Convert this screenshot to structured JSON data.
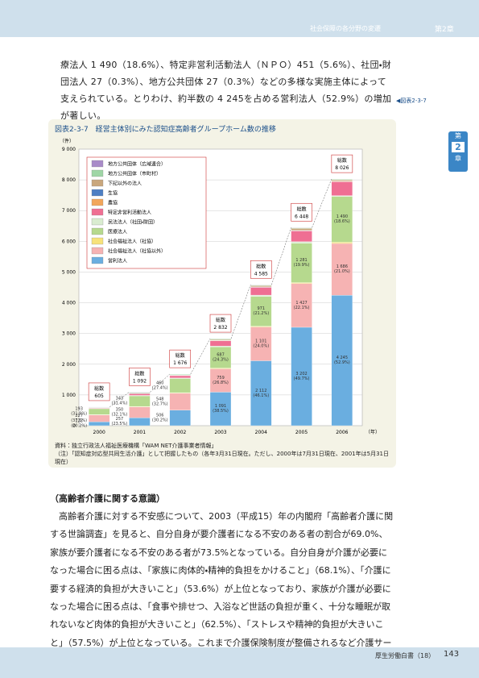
{
  "header": {
    "section": "社会保障の各分野の変遷",
    "chapter": "第2章"
  },
  "side_tab": {
    "top": "第",
    "number": "2",
    "bottom": "章"
  },
  "figure_ref": "◀図表2-3-7",
  "intro": "療法人 1 490（18.6%）、特定非営利活動法人（ＮＰＯ）451（5.6%）、社団・財団法人 27（0.3%）、地方公共団体 27（0.3%）などの多様な実施主体によって支えられている。とりわけ、約半数の 4 245を占める営利法人（52.9%）の増加が著しい。",
  "chart_data": {
    "type": "stacked-bar",
    "title": "図表2-3-7　経営主体別にみた認知症高齢者グループホーム数の推移",
    "y_unit": "（件）",
    "x_unit": "（年）",
    "categories": [
      "2000",
      "2001",
      "2002",
      "2003",
      "2004",
      "2005",
      "2006"
    ],
    "ylim": [
      0,
      9000
    ],
    "yticks": [
      0,
      {
        "value": 1000,
        "label": "1 000"
      },
      {
        "value": 2000,
        "label": "2 000"
      },
      {
        "value": 3000,
        "label": "3 000"
      },
      {
        "value": 4000,
        "label": "4 000"
      },
      {
        "value": 5000,
        "label": "5 000"
      },
      {
        "value": 6000,
        "label": "6 000"
      },
      {
        "value": 7000,
        "label": "7 000"
      },
      {
        "value": 8000,
        "label": "8 000"
      },
      {
        "value": 9000,
        "label": "9 000"
      }
    ],
    "series": [
      {
        "name": "営利法人",
        "color": "#6aaee0",
        "values": [
          122,
          257,
          506,
          1091,
          2112,
          3202,
          4245
        ],
        "value_labels": [
          "122 (20.2%)",
          "257 (23.5%)",
          "506 (30.2%)",
          "1 091 (38.5%)",
          "2 112 (46.1%)",
          "3 202 (49.7%)",
          "4 245 (52.9%)"
        ]
      },
      {
        "name": "社会福祉法人（社協以外）",
        "color": "#f6b3b3",
        "values": [
          227,
          350,
          548,
          759,
          1101,
          1427,
          1686
        ],
        "value_labels": [
          "227 (37.5%)",
          "350 (32.1%)",
          "548 (32.7%)",
          "759 (26.8%)",
          "1 101 (24.0%)",
          "1 427 (22.1%)",
          "1 686 (21.0%)"
        ]
      },
      {
        "name": "社会福祉法人（社協）",
        "color": "#f7e27a",
        "values": [
          10,
          20,
          20,
          25,
          25,
          28,
          40
        ]
      },
      {
        "name": "医療法人",
        "color": "#b6d98e",
        "values": [
          193,
          343,
          460,
          687,
          971,
          1281,
          1490
        ],
        "value_labels": [
          "193 (31.9%)",
          "343 (31.4%)",
          "460 (27.4%)",
          "687 (24.3%)",
          "971 (21.2%)",
          "1 281 (19.9%)",
          "1 490 (18.6%)"
        ]
      },
      {
        "name": "民法法人（社団・財団）",
        "color": "#d9ecd0",
        "values": [
          8,
          15,
          18,
          30,
          40,
          50,
          27
        ]
      },
      {
        "name": "特定非営利活動法人",
        "color": "#ef6f93",
        "values": [
          17,
          55,
          75,
          170,
          253,
          350,
          451
        ]
      },
      {
        "name": "農協",
        "color": "#f2a65a",
        "values": [
          3,
          5,
          5,
          6,
          8,
          10,
          12
        ]
      },
      {
        "name": "生協",
        "color": "#4d7fc4",
        "values": [
          2,
          4,
          4,
          6,
          7,
          8,
          8
        ]
      },
      {
        "name": "下記以外の法人",
        "color": "#c9a77c",
        "values": [
          5,
          13,
          14,
          25,
          38,
          62,
          40
        ]
      },
      {
        "name": "地方公共団体（市町村）",
        "color": "#9fd6a6",
        "values": [
          12,
          22,
          20,
          25,
          22,
          22,
          20
        ]
      },
      {
        "name": "地方公共団体（広域連合）",
        "color": "#a98bc9",
        "values": [
          6,
          8,
          6,
          8,
          8,
          8,
          7
        ]
      }
    ],
    "total_title": "総数",
    "totals": [
      605,
      1092,
      1676,
      2832,
      4585,
      6448,
      8026
    ],
    "total_labels": [
      "605",
      "1 092",
      "1 676",
      "2 832",
      "4 585",
      "6 448",
      "8 026"
    ],
    "source": "資料：独立行政法人福祉医療機構「WAM NET介護事業者情報」",
    "note": "（注）「認知症対応型共同生活介護」として把握したもの（各年3月31日現在。ただし、2000年は7月31日現在、2001年は5月31日現在）"
  },
  "section": {
    "heading": "（高齢者介護に関する意識）",
    "text": "　高齢者介護に対する不安感について、2003（平成15）年の内閣府「高齢者介護に関する世論調査」を見ると、自分自身が要介護者になる不安のある者の割合が69.0%、家族が要介護者になる不安のある者が73.5%となっている。自分自身が介護が必要になった場合に困る点は、「家族に肉体的・精神的負担をかけること」（68.1%）、「介護に要する経済的負担が大きいこと」（53.6%）が上位となっており、家族が介護が必要になった場合に困る点は、「食事や排せつ、入浴など世話の負担が重く、十分な睡眠が取れないなど肉体的負担が大きいこと」（62.5%）、「ストレスや精神的負担が大きいこと」（57.5%）が上位となっている。これまで介護保険制度が整備されるなど介護サー"
  },
  "footer": {
    "book": "厚生労働白書（18）",
    "page": "143"
  }
}
